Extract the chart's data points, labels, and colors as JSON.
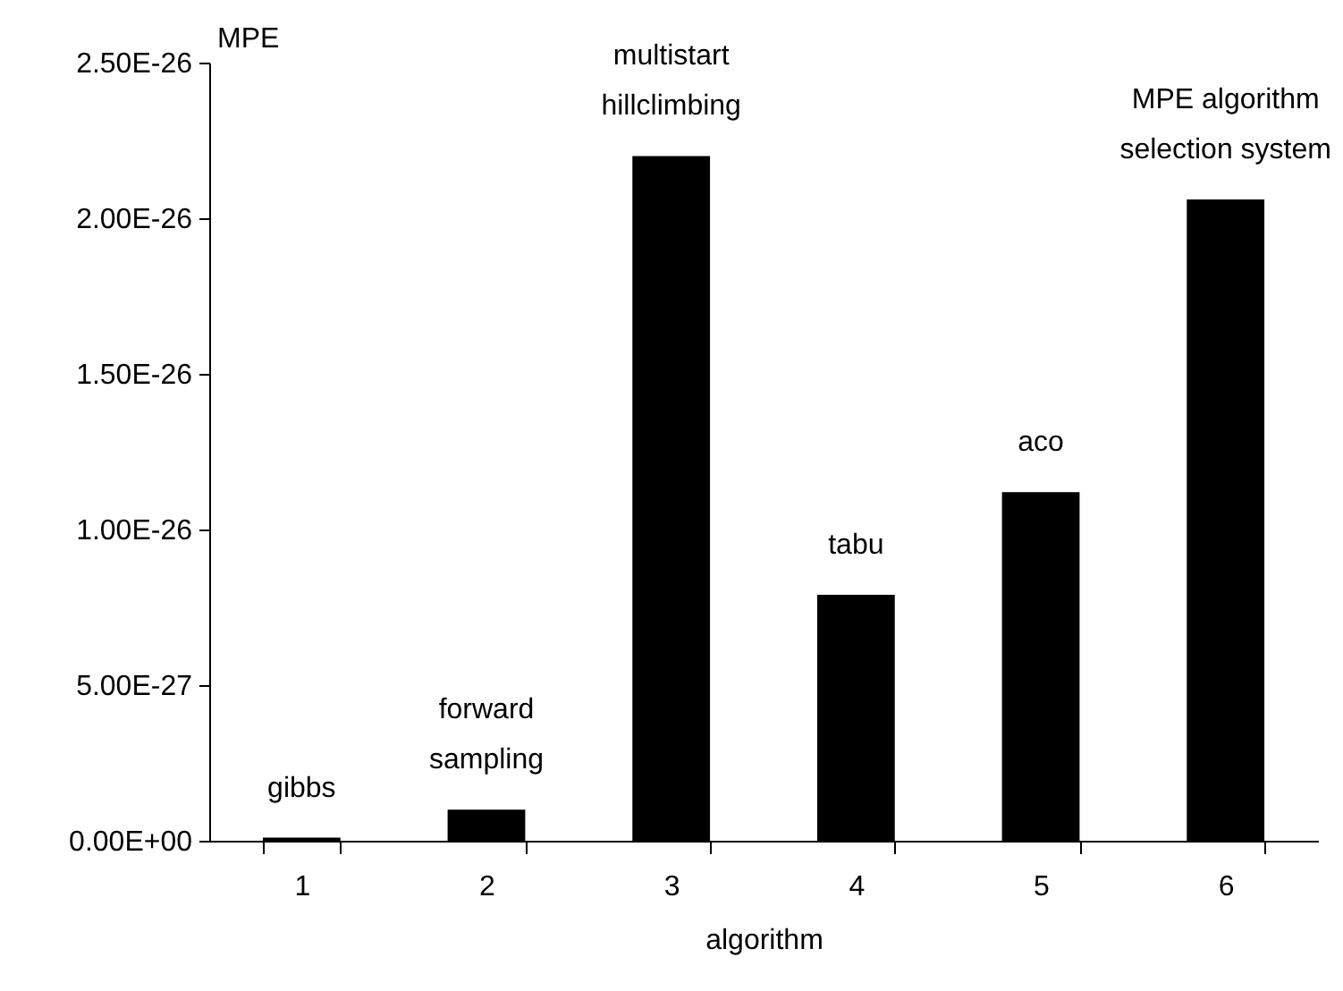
{
  "chart_data": {
    "type": "bar",
    "xlabel": "algorithm",
    "ylabel": "MPE",
    "categories": [
      "1",
      "2",
      "3",
      "4",
      "5",
      "6"
    ],
    "values": [
      1e-28,
      1e-27,
      2.2e-26,
      7.9e-27,
      1.12e-26,
      2.06e-26
    ],
    "color": "#000000",
    "ylim": [
      0,
      2.5e-26
    ],
    "yticks": [
      {
        "value": 0,
        "label": "0.00E+00"
      },
      {
        "value": 5e-27,
        "label": "5.00E-27"
      },
      {
        "value": 1e-26,
        "label": "1.00E-26"
      },
      {
        "value": 1.5e-26,
        "label": "1.50E-26"
      },
      {
        "value": 2e-26,
        "label": "2.00E-26"
      },
      {
        "value": 2.5e-26,
        "label": "2.50E-26"
      }
    ],
    "annotations": [
      {
        "text": "gibbs",
        "x": "1",
        "y": 1e-28
      },
      {
        "text": "forward\nsampling",
        "x": "2",
        "y": 1e-27
      },
      {
        "text": "multistart\nhillclimbing",
        "x": "3",
        "y": 2.2e-26
      },
      {
        "text": "tabu",
        "x": "4",
        "y": 7.9e-27
      },
      {
        "text": "aco",
        "x": "5",
        "y": 1.12e-26
      },
      {
        "text": "MPE algorithm\nselection system",
        "x": "6",
        "y": 2.06e-26
      }
    ],
    "grid": false
  }
}
